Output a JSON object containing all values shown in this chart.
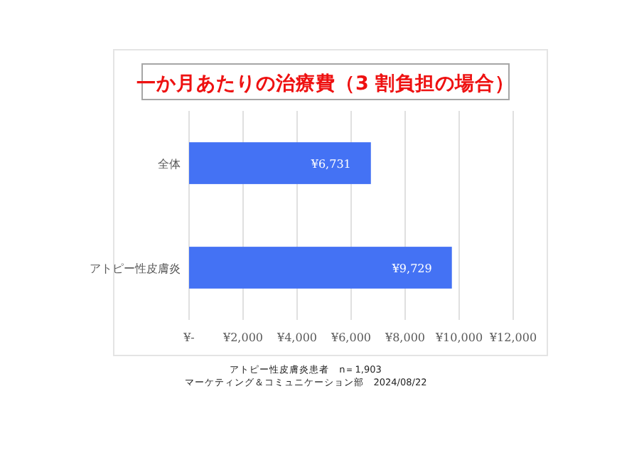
{
  "chart_data": {
    "type": "bar",
    "orientation": "horizontal",
    "title": "一か月あたりの治療費（3 割負担の場合）",
    "categories": [
      "全体",
      "アトピー性皮膚炎"
    ],
    "values": [
      6731,
      9729
    ],
    "value_labels": [
      "¥6,731",
      "¥9,729"
    ],
    "color": "#4472f4",
    "xlim": [
      0,
      12000
    ],
    "xticks": [
      {
        "value": 0,
        "label": "¥-"
      },
      {
        "value": 2000,
        "label": "¥2,000"
      },
      {
        "value": 4000,
        "label": "¥4,000"
      },
      {
        "value": 6000,
        "label": "¥6,000"
      },
      {
        "value": 8000,
        "label": "¥8,000"
      },
      {
        "value": 10000,
        "label": "¥10,000"
      },
      {
        "value": 12000,
        "label": "¥12,000"
      }
    ],
    "grid": "x",
    "annotations": [
      "アトピー性皮膚炎患者　n＝1,903",
      "マーケティング＆コミュニケーション部　2024/08/22"
    ]
  }
}
